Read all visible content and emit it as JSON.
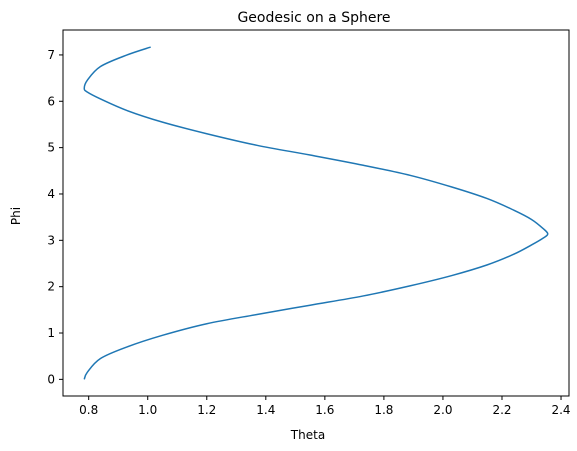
{
  "chart_data": {
    "type": "line",
    "title": "Geodesic on a Sphere",
    "xlabel": "Theta",
    "ylabel": "Phi",
    "xlim": [
      0.713,
      2.427
    ],
    "ylim": [
      -0.359,
      7.538
    ],
    "xticks": [
      0.8,
      1.0,
      1.2,
      1.4,
      1.6,
      1.8,
      2.0,
      2.2,
      2.4
    ],
    "yticks": [
      0,
      1,
      2,
      3,
      4,
      5,
      6,
      7
    ],
    "grid": false,
    "series": [
      {
        "color": "#1f77b4",
        "x": [
          0.785,
          0.795,
          0.84,
          0.93,
          1.05,
          1.2,
          1.37,
          1.55,
          1.73,
          1.89,
          2.03,
          2.15,
          2.24,
          2.3,
          2.34,
          2.355,
          2.34,
          2.3,
          2.24,
          2.15,
          2.03,
          1.89,
          1.73,
          1.55,
          1.37,
          1.2,
          1.05,
          0.93,
          0.84,
          0.795,
          0.785,
          0.795,
          0.84,
          0.93,
          1.01
        ],
        "y": [
          0.0,
          0.15,
          0.45,
          0.7,
          0.95,
          1.2,
          1.4,
          1.6,
          1.8,
          2.02,
          2.24,
          2.47,
          2.7,
          2.9,
          3.05,
          3.14,
          3.25,
          3.45,
          3.65,
          3.9,
          4.15,
          4.4,
          4.62,
          4.84,
          5.05,
          5.3,
          5.55,
          5.8,
          6.05,
          6.2,
          6.28,
          6.45,
          6.75,
          7.0,
          7.17
        ]
      }
    ]
  }
}
